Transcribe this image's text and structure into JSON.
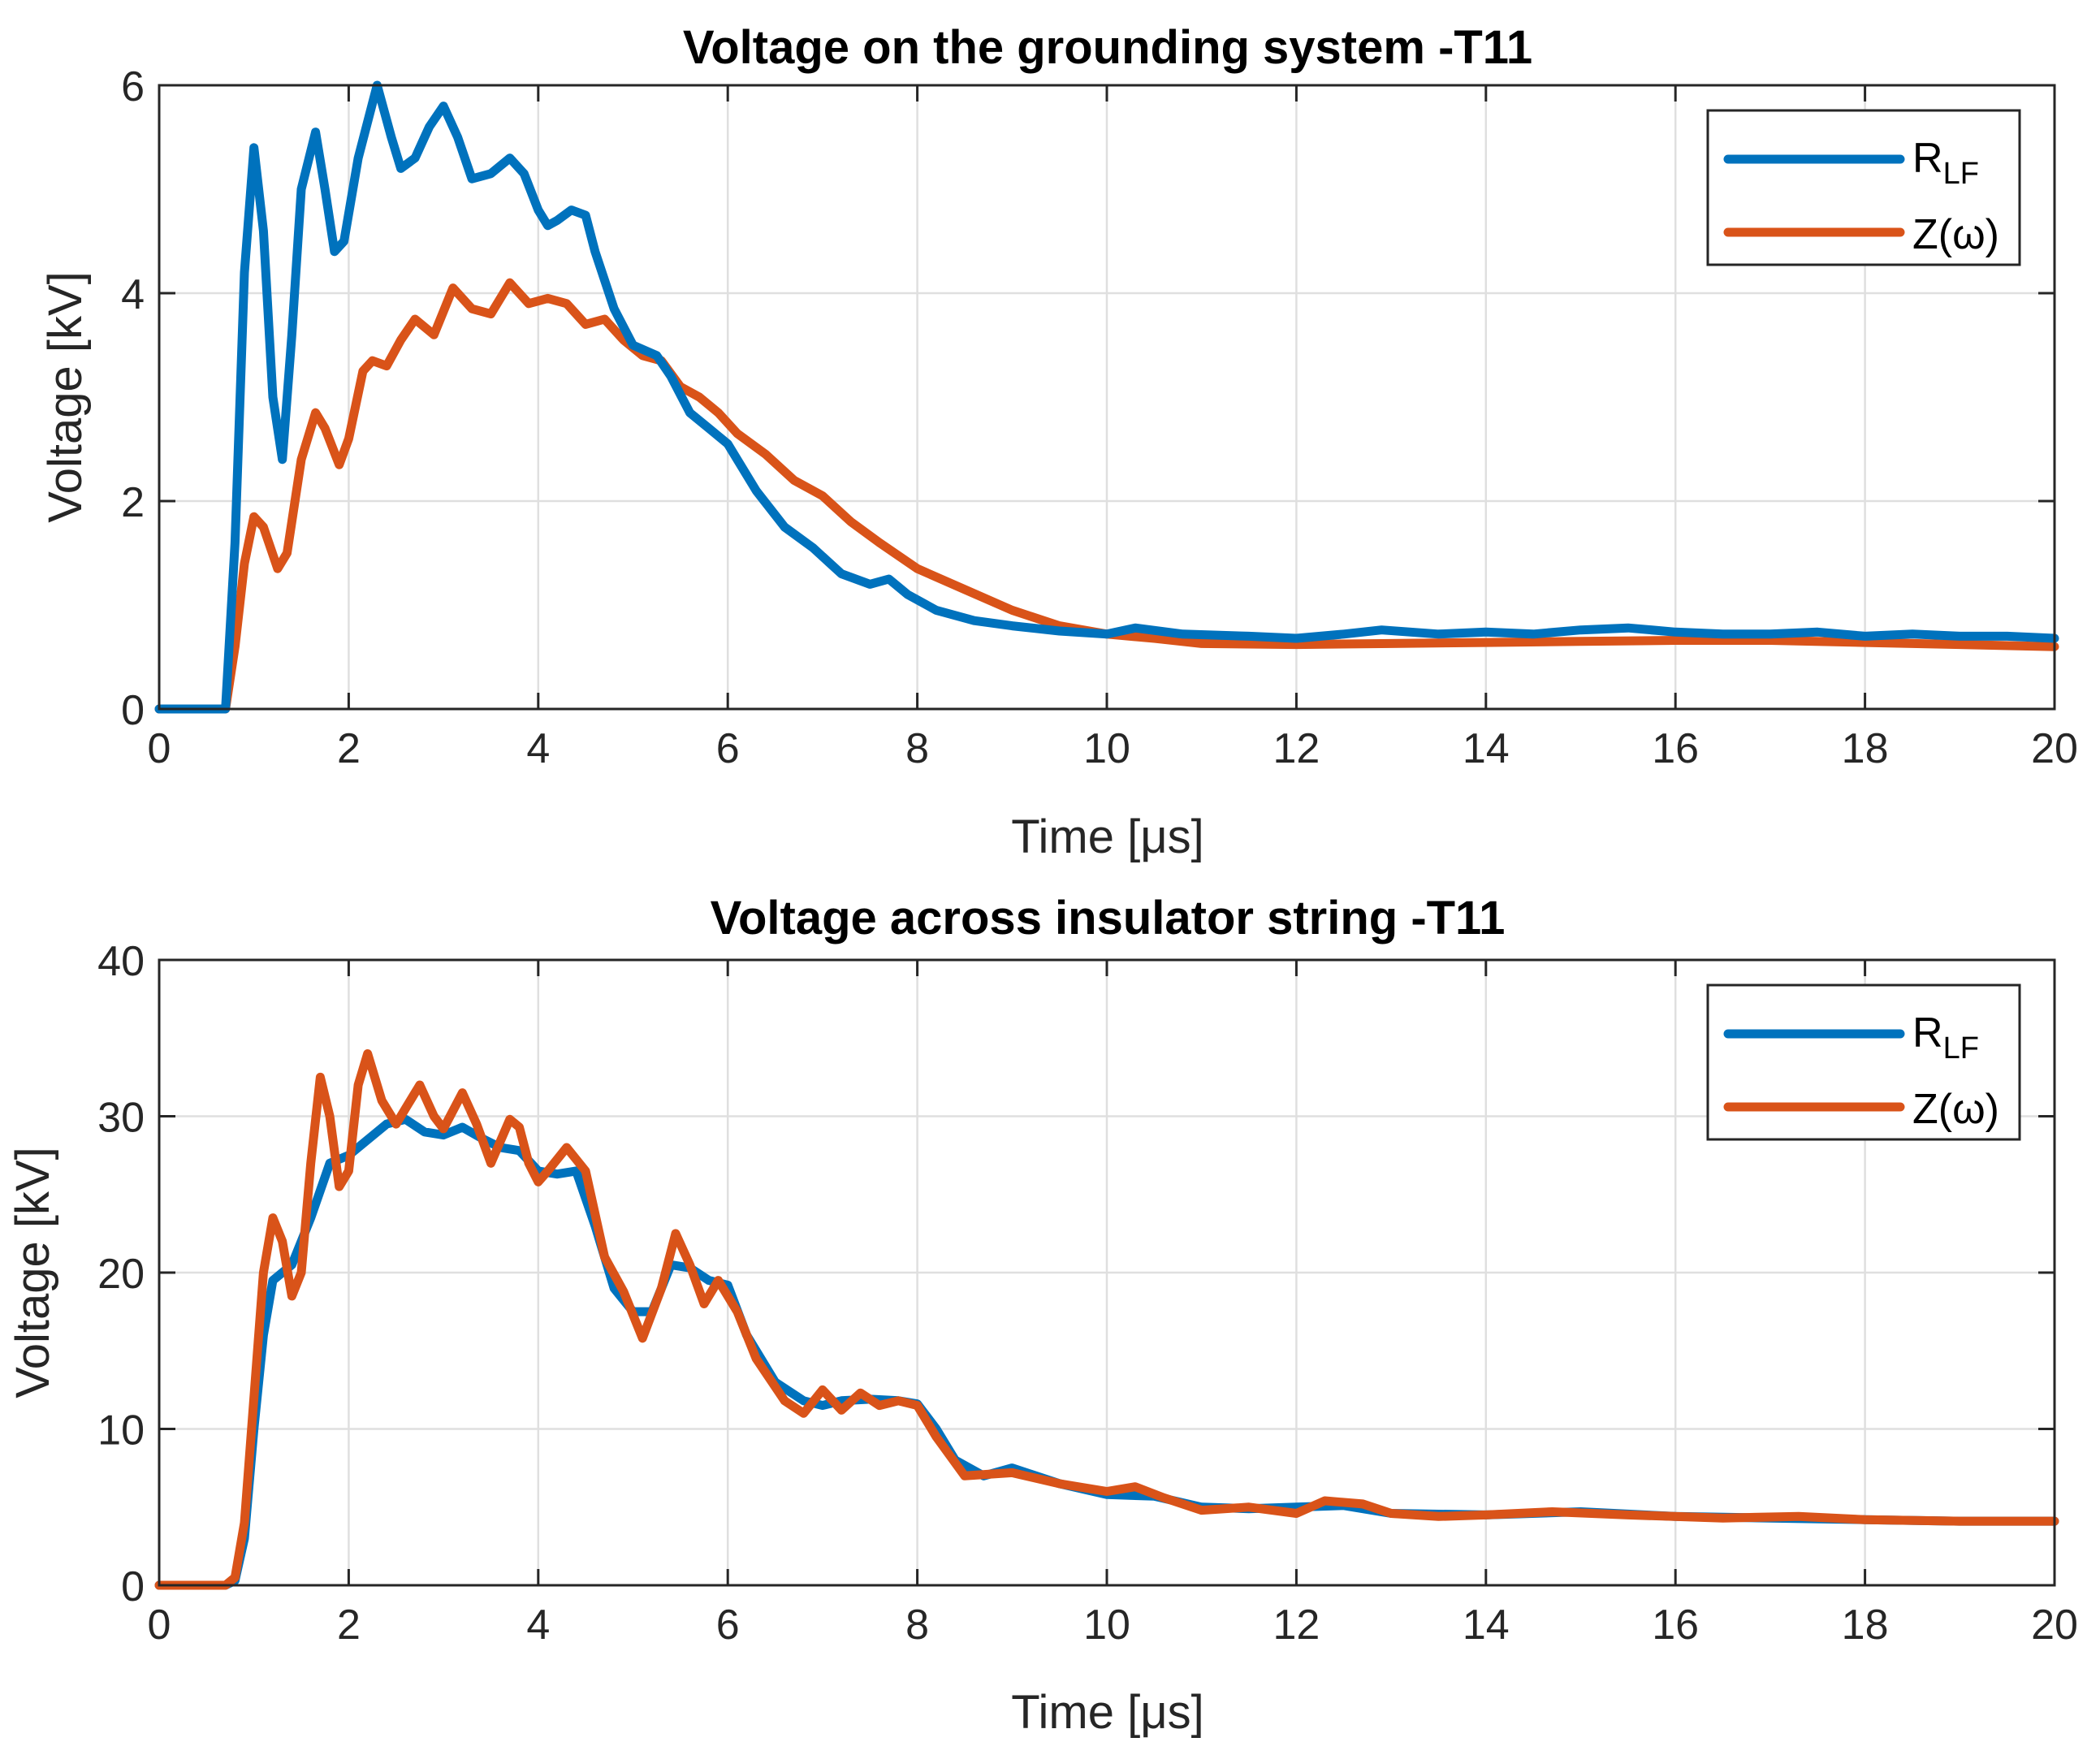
{
  "chart_data": [
    {
      "type": "line",
      "title": "Voltage on the grounding system -T11",
      "xlabel": "Time [μs]",
      "ylabel": "Voltage [kV]",
      "xlim": [
        0,
        20
      ],
      "ylim": [
        0,
        6
      ],
      "xticks": [
        0,
        2,
        4,
        6,
        8,
        10,
        12,
        14,
        16,
        18,
        20
      ],
      "yticks": [
        0,
        2,
        4,
        6
      ],
      "grid": true,
      "legend_position": "top-right",
      "series": [
        {
          "name": "R",
          "name_subscript": "LF",
          "color": "#0072BD",
          "x": [
            0,
            0.7,
            0.8,
            0.9,
            1.0,
            1.1,
            1.2,
            1.3,
            1.4,
            1.5,
            1.65,
            1.75,
            1.85,
            1.95,
            2.1,
            2.3,
            2.45,
            2.55,
            2.7,
            2.85,
            3.0,
            3.15,
            3.3,
            3.5,
            3.7,
            3.85,
            4.0,
            4.1,
            4.2,
            4.35,
            4.5,
            4.6,
            4.8,
            5.0,
            5.25,
            5.4,
            5.6,
            5.8,
            6.0,
            6.3,
            6.6,
            6.9,
            7.2,
            7.5,
            7.7,
            7.9,
            8.2,
            8.6,
            9.0,
            9.5,
            10.0,
            10.3,
            10.8,
            11.5,
            12.0,
            12.5,
            12.9,
            13.5,
            14.0,
            14.5,
            15.0,
            15.5,
            16.0,
            16.5,
            17.0,
            17.5,
            18.0,
            18.5,
            19.0,
            19.5,
            20.0
          ],
          "y": [
            0,
            0,
            1.6,
            4.2,
            5.4,
            4.6,
            3.0,
            2.4,
            3.6,
            5.0,
            5.55,
            5.0,
            4.4,
            4.5,
            5.3,
            6.0,
            5.5,
            5.2,
            5.3,
            5.6,
            5.8,
            5.5,
            5.1,
            5.15,
            5.3,
            5.15,
            4.8,
            4.65,
            4.7,
            4.8,
            4.75,
            4.4,
            3.85,
            3.5,
            3.4,
            3.2,
            2.85,
            2.7,
            2.55,
            2.1,
            1.75,
            1.55,
            1.3,
            1.2,
            1.25,
            1.1,
            0.95,
            0.85,
            0.8,
            0.75,
            0.72,
            0.78,
            0.72,
            0.7,
            0.68,
            0.72,
            0.76,
            0.72,
            0.74,
            0.72,
            0.76,
            0.78,
            0.74,
            0.72,
            0.72,
            0.74,
            0.7,
            0.72,
            0.7,
            0.7,
            0.68
          ]
        },
        {
          "name": "Z(ω)",
          "name_subscript": "",
          "color": "#D95319",
          "x": [
            0,
            0.7,
            0.8,
            0.9,
            1.0,
            1.1,
            1.25,
            1.35,
            1.5,
            1.65,
            1.75,
            1.9,
            2.0,
            2.15,
            2.25,
            2.4,
            2.55,
            2.7,
            2.9,
            3.1,
            3.3,
            3.5,
            3.7,
            3.9,
            4.1,
            4.3,
            4.5,
            4.7,
            4.9,
            5.1,
            5.3,
            5.5,
            5.7,
            5.9,
            6.1,
            6.4,
            6.7,
            7.0,
            7.3,
            7.6,
            8.0,
            8.5,
            9.0,
            9.5,
            10.0,
            10.5,
            11.0,
            12.0,
            13.0,
            14.0,
            15.0,
            16.0,
            17.0,
            18.0,
            19.0,
            20.0
          ],
          "y": [
            0,
            0,
            0.6,
            1.4,
            1.85,
            1.75,
            1.35,
            1.5,
            2.4,
            2.85,
            2.7,
            2.35,
            2.6,
            3.25,
            3.35,
            3.3,
            3.55,
            3.75,
            3.6,
            4.05,
            3.85,
            3.8,
            4.1,
            3.9,
            3.95,
            3.9,
            3.7,
            3.75,
            3.55,
            3.4,
            3.35,
            3.1,
            3.0,
            2.85,
            2.65,
            2.45,
            2.2,
            2.05,
            1.8,
            1.6,
            1.35,
            1.15,
            0.95,
            0.8,
            0.72,
            0.68,
            0.63,
            0.62,
            0.63,
            0.64,
            0.65,
            0.66,
            0.66,
            0.64,
            0.62,
            0.6
          ]
        }
      ]
    },
    {
      "type": "line",
      "title": "Voltage across insulator string -T11",
      "xlabel": "Time [μs]",
      "ylabel": "Voltage [kV]",
      "xlim": [
        0,
        20
      ],
      "ylim": [
        0,
        40
      ],
      "xticks": [
        0,
        2,
        4,
        6,
        8,
        10,
        12,
        14,
        16,
        18,
        20
      ],
      "yticks": [
        0,
        10,
        20,
        30,
        40
      ],
      "grid": true,
      "legend_position": "top-right",
      "series": [
        {
          "name": "R",
          "name_subscript": "LF",
          "color": "#0072BD",
          "x": [
            0,
            0.7,
            0.8,
            0.9,
            1.0,
            1.1,
            1.2,
            1.4,
            1.6,
            1.8,
            2.0,
            2.2,
            2.4,
            2.6,
            2.8,
            3.0,
            3.2,
            3.4,
            3.6,
            3.8,
            4.0,
            4.2,
            4.4,
            4.6,
            4.8,
            5.0,
            5.2,
            5.4,
            5.6,
            5.8,
            6.0,
            6.2,
            6.5,
            6.8,
            7.0,
            7.2,
            7.5,
            7.8,
            8.0,
            8.2,
            8.4,
            8.7,
            9.0,
            9.5,
            10.0,
            10.5,
            11.0,
            11.5,
            12.0,
            12.5,
            13.0,
            14.0,
            15.0,
            16.0,
            17.0,
            18.0,
            19.0,
            20.0
          ],
          "y": [
            0,
            0,
            0.3,
            3,
            10,
            16,
            19.5,
            20.5,
            23.5,
            27,
            27.5,
            28.5,
            29.5,
            29.8,
            29,
            28.8,
            29.3,
            28.6,
            28,
            27.8,
            26.5,
            26.3,
            26.5,
            23,
            19,
            17.5,
            17.5,
            20.5,
            20.3,
            19.5,
            19.2,
            16,
            13,
            11.8,
            11.5,
            11.8,
            11.9,
            11.8,
            11.6,
            10,
            8,
            7,
            7.5,
            6.5,
            5.8,
            5.7,
            5,
            4.9,
            5,
            5.1,
            4.6,
            4.5,
            4.7,
            4.4,
            4.3,
            4.2,
            4.1,
            4.1
          ]
        },
        {
          "name": "Z(ω)",
          "name_subscript": "",
          "color": "#D95319",
          "x": [
            0,
            0.7,
            0.8,
            0.9,
            1.0,
            1.1,
            1.2,
            1.3,
            1.4,
            1.5,
            1.6,
            1.7,
            1.8,
            1.9,
            2.0,
            2.1,
            2.2,
            2.35,
            2.5,
            2.6,
            2.75,
            2.9,
            3.0,
            3.2,
            3.35,
            3.5,
            3.7,
            3.8,
            3.9,
            4.0,
            4.1,
            4.3,
            4.5,
            4.7,
            4.9,
            5.1,
            5.3,
            5.45,
            5.6,
            5.75,
            5.9,
            6.1,
            6.3,
            6.6,
            6.8,
            7.0,
            7.2,
            7.4,
            7.6,
            7.8,
            8.0,
            8.2,
            8.5,
            9.0,
            9.5,
            10.0,
            10.3,
            10.6,
            11.0,
            11.5,
            12.0,
            12.3,
            12.7,
            13.0,
            13.5,
            14.0,
            14.7,
            15.5,
            16.5,
            17.3,
            18.0,
            19.0,
            20.0
          ],
          "y": [
            0,
            0,
            0.5,
            4,
            12,
            20,
            23.5,
            22,
            18.5,
            20,
            27,
            32.5,
            30,
            25.5,
            26.5,
            32,
            34,
            31,
            29.5,
            30.5,
            32,
            30,
            29.2,
            31.5,
            29.5,
            27,
            29.8,
            29.3,
            27,
            25.8,
            26.5,
            28,
            26.5,
            21,
            18.8,
            15.8,
            19,
            22.5,
            20.5,
            18,
            19.5,
            17.5,
            14.5,
            11.8,
            11,
            12.5,
            11.2,
            12.3,
            11.5,
            11.8,
            11.5,
            9.5,
            7,
            7.2,
            6.5,
            6,
            6.3,
            5.6,
            4.8,
            5,
            4.6,
            5.4,
            5.2,
            4.6,
            4.4,
            4.5,
            4.7,
            4.5,
            4.3,
            4.4,
            4.2,
            4.1,
            4.1
          ]
        }
      ]
    }
  ]
}
